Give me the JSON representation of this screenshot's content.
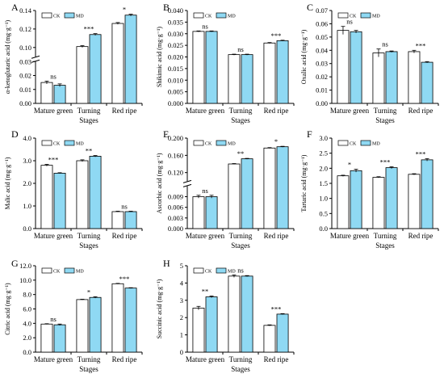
{
  "colors": {
    "CK": "#ffffff",
    "MD": "#8fd9f3",
    "axis": "#000000"
  },
  "legend": [
    "CK",
    "MD"
  ],
  "chart_data": [
    {
      "id": "A",
      "type": "bar",
      "ylabel": "α-ketoglutaric acid (mg·g⁻¹)",
      "xlabel": "Stages",
      "categories": [
        "Mature green",
        "Turning",
        "Red ripe"
      ],
      "series": [
        {
          "name": "CK",
          "values": [
            0.015,
            0.101,
            0.126
          ],
          "errors": [
            0.001,
            0.001,
            0.001
          ]
        },
        {
          "name": "MD",
          "values": [
            0.013,
            0.114,
            0.135
          ],
          "errors": [
            0.001,
            0.001,
            0.001
          ]
        }
      ],
      "sig": [
        "ns",
        "***",
        "*"
      ],
      "axis_break": {
        "lower": [
          0,
          0.03
        ],
        "upper": [
          0.09,
          0.14
        ]
      },
      "yticks": [
        "0.00",
        "0.01",
        "0.02",
        "0.03",
        "0.10",
        "0.12",
        "0.14"
      ]
    },
    {
      "id": "B",
      "type": "bar",
      "ylabel": "Shikimic acid (mg·g⁻¹)",
      "xlabel": "Stages",
      "categories": [
        "Mature green",
        "Turning",
        "Red ripe"
      ],
      "series": [
        {
          "name": "CK",
          "values": [
            0.031,
            0.021,
            0.026
          ],
          "errors": [
            0.0002,
            0.0002,
            0.0002
          ]
        },
        {
          "name": "MD",
          "values": [
            0.031,
            0.021,
            0.027
          ],
          "errors": [
            0.0002,
            0.0002,
            0.0002
          ]
        }
      ],
      "sig": [
        "ns",
        "ns",
        "***"
      ],
      "ylim": [
        0,
        0.04
      ],
      "yticks": [
        "0.000",
        "0.005",
        "0.010",
        "0.015",
        "0.020",
        "0.025",
        "0.030",
        "0.035",
        "0.040"
      ]
    },
    {
      "id": "C",
      "type": "bar",
      "ylabel": "Oxalic acid (mg·g⁻¹)",
      "xlabel": "Stages",
      "categories": [
        "Mature green",
        "Turning",
        "Red ripe"
      ],
      "series": [
        {
          "name": "CK",
          "values": [
            0.055,
            0.038,
            0.039
          ],
          "errors": [
            0.003,
            0.003,
            0.001
          ]
        },
        {
          "name": "MD",
          "values": [
            0.054,
            0.039,
            0.031
          ],
          "errors": [
            0.001,
            0.0005,
            0.0005
          ]
        }
      ],
      "sig": [
        "ns",
        "ns",
        "***"
      ],
      "ylim": [
        0,
        0.07
      ],
      "yticks": [
        "0.00",
        "0.01",
        "0.02",
        "0.03",
        "0.04",
        "0.05",
        "0.06",
        "0.07"
      ]
    },
    {
      "id": "D",
      "type": "bar",
      "ylabel": "Malic acid (mg·g⁻¹)",
      "xlabel": "Stages",
      "categories": [
        "Mature green",
        "Turning",
        "Red ripe"
      ],
      "series": [
        {
          "name": "CK",
          "values": [
            2.8,
            3.0,
            0.75
          ],
          "errors": [
            0.04,
            0.04,
            0.02
          ]
        },
        {
          "name": "MD",
          "values": [
            2.45,
            3.2,
            0.75
          ],
          "errors": [
            0.02,
            0.03,
            0.02
          ]
        }
      ],
      "sig": [
        "***",
        "**",
        "ns"
      ],
      "ylim": [
        0,
        4.0
      ],
      "yticks": [
        "0.0",
        "1.0",
        "2.0",
        "3.0",
        "4.0"
      ]
    },
    {
      "id": "E",
      "type": "bar",
      "ylabel": "Ascorbic acid (mg·g⁻¹)",
      "xlabel": "Stages",
      "categories": [
        "Mature green",
        "Turning",
        "Red ripe"
      ],
      "series": [
        {
          "name": "CK",
          "values": [
            0.009,
            0.14,
            0.177
          ],
          "errors": [
            0.0004,
            0.001,
            0.001
          ]
        },
        {
          "name": "MD",
          "values": [
            0.009,
            0.152,
            0.18
          ],
          "errors": [
            0.0004,
            0.001,
            0.001
          ]
        }
      ],
      "sig": [
        "ns",
        "**",
        "*"
      ],
      "axis_break": {
        "lower": [
          0,
          0.012
        ],
        "upper": [
          0.1,
          0.2
        ]
      },
      "yticks": [
        "0.000",
        "0.003",
        "0.006",
        "0.009",
        "0.120",
        "0.160",
        "0.200"
      ]
    },
    {
      "id": "F",
      "type": "bar",
      "ylabel": "Tartaric acid (mg·g⁻¹)",
      "xlabel": "Stages",
      "categories": [
        "Mature green",
        "Turning",
        "Red ripe"
      ],
      "series": [
        {
          "name": "CK",
          "values": [
            1.75,
            1.7,
            1.8
          ],
          "errors": [
            0.02,
            0.02,
            0.02
          ]
        },
        {
          "name": "MD",
          "values": [
            1.92,
            2.02,
            2.28
          ],
          "errors": [
            0.05,
            0.03,
            0.04
          ]
        }
      ],
      "sig": [
        "*",
        "***",
        "***"
      ],
      "ylim": [
        0,
        3.0
      ],
      "yticks": [
        "0.0",
        "0.5",
        "1.0",
        "1.5",
        "2.0",
        "2.5",
        "3.0"
      ]
    },
    {
      "id": "G",
      "type": "bar",
      "ylabel": "Citric acid (mg·g⁻¹)",
      "xlabel": "Stages",
      "categories": [
        "Mature green",
        "Turning",
        "Red ripe"
      ],
      "series": [
        {
          "name": "CK",
          "values": [
            3.9,
            7.3,
            9.5
          ],
          "errors": [
            0.05,
            0.05,
            0.05
          ]
        },
        {
          "name": "MD",
          "values": [
            3.8,
            7.6,
            8.9
          ],
          "errors": [
            0.1,
            0.1,
            0.05
          ]
        }
      ],
      "sig": [
        "ns",
        "*",
        "***"
      ],
      "ylim": [
        0,
        12.0
      ],
      "yticks": [
        "0.0",
        "2.0",
        "4.0",
        "6.0",
        "8.0",
        "10.0",
        "12.0"
      ]
    },
    {
      "id": "H",
      "type": "bar",
      "ylabel": "Succinic acid (mg·g⁻¹)",
      "xlabel": "Stages",
      "categories": [
        "Mature green",
        "Turning",
        "Red ripe"
      ],
      "series": [
        {
          "name": "CK",
          "values": [
            2.55,
            4.4,
            1.55
          ],
          "errors": [
            0.1,
            0.07,
            0.03
          ]
        },
        {
          "name": "MD",
          "values": [
            3.2,
            4.4,
            2.2
          ],
          "errors": [
            0.05,
            0.03,
            0.03
          ]
        }
      ],
      "sig": [
        "**",
        "ns",
        "***"
      ],
      "ylim": [
        0,
        5
      ],
      "yticks": [
        "0",
        "1",
        "2",
        "3",
        "4",
        "5"
      ]
    }
  ]
}
